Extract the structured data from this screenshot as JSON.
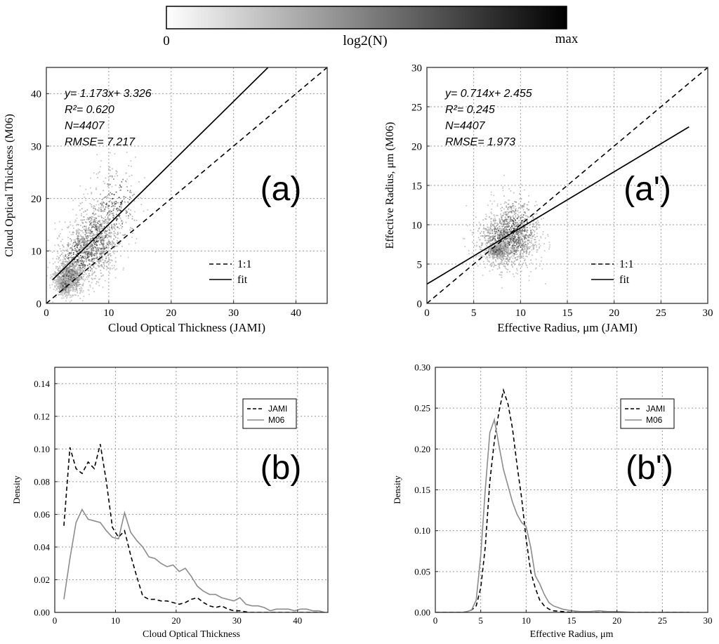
{
  "colorbar": {
    "min_label": "0",
    "center_label": "log2(N)",
    "max_label": "max",
    "colors": [
      "#ffffff",
      "#000000"
    ]
  },
  "chart_data": [
    {
      "id": "a",
      "type": "scatter",
      "panel_label": "(a)",
      "xlabel": "Cloud Optical Thickness (JAMI)",
      "ylabel": "Cloud Optical Thickness (M06)",
      "xlim": [
        0,
        45
      ],
      "ylim": [
        0,
        45
      ],
      "xticks": [
        0,
        10,
        20,
        30,
        40
      ],
      "yticks": [
        0,
        10,
        20,
        30,
        40
      ],
      "grid": true,
      "stats": [
        "y= 1.173x+ 3.326",
        "R²= 0.620",
        "N=4407",
        "RMSE= 7.217"
      ],
      "fit": {
        "slope": 1.173,
        "intercept": 3.326,
        "x_range": [
          1.0,
          35.5
        ]
      },
      "one_to_one": {
        "x_range": [
          0,
          45
        ]
      },
      "legend": {
        "position": "bottom-right",
        "entries": [
          {
            "label": "1:1",
            "style": "dashed"
          },
          {
            "label": "fit",
            "style": "solid"
          }
        ]
      },
      "density_clusters": [
        {
          "cx": 3.5,
          "cy": 5.0,
          "sx": 1.2,
          "sy": 1.6,
          "n": 700
        },
        {
          "cx": 8.0,
          "cy": 12.5,
          "sx": 1.8,
          "sy": 3.5,
          "n": 700
        },
        {
          "cx": 5.5,
          "cy": 9.0,
          "sx": 2.0,
          "sy": 3.0,
          "n": 500
        },
        {
          "cx": 11.0,
          "cy": 19.0,
          "sx": 2.0,
          "sy": 4.0,
          "n": 250
        },
        {
          "cx": 2.8,
          "cy": 3.5,
          "sx": 0.6,
          "sy": 0.8,
          "n": 300
        }
      ]
    },
    {
      "id": "a_prime",
      "type": "scatter",
      "panel_label": "(a')",
      "xlabel": "Effective Radius, μm (JAMI)",
      "ylabel": "Effective Radius, μm (M06)",
      "xlim": [
        0,
        30
      ],
      "ylim": [
        0,
        30
      ],
      "xticks": [
        0,
        5,
        10,
        15,
        20,
        25,
        30
      ],
      "yticks": [
        0,
        5,
        10,
        15,
        20,
        25,
        30
      ],
      "grid": true,
      "stats": [
        "y= 0.714x+ 2.455",
        "R²= 0.245",
        "N=4407",
        "RMSE= 1.973"
      ],
      "fit": {
        "slope": 0.714,
        "intercept": 2.455,
        "x_range": [
          0,
          28
        ]
      },
      "one_to_one": {
        "x_range": [
          0,
          30
        ]
      },
      "legend": {
        "position": "bottom-right",
        "entries": [
          {
            "label": "1:1",
            "style": "dashed"
          },
          {
            "label": "fit",
            "style": "solid"
          }
        ]
      },
      "density_clusters": [
        {
          "cx": 8.5,
          "cy": 8.0,
          "sx": 1.6,
          "sy": 1.8,
          "n": 1100
        },
        {
          "cx": 7.5,
          "cy": 6.8,
          "sx": 0.6,
          "sy": 0.5,
          "n": 400
        },
        {
          "cx": 9.5,
          "cy": 10.0,
          "sx": 1.3,
          "sy": 2.0,
          "n": 350
        }
      ]
    },
    {
      "id": "b",
      "type": "line",
      "panel_label": "(b)",
      "xlabel": "Cloud Optical Thickness",
      "ylabel": "Density",
      "xlim": [
        0,
        45
      ],
      "ylim": [
        0,
        0.15
      ],
      "xticks": [
        0,
        10,
        20,
        30,
        40
      ],
      "yticks": [
        0.0,
        0.02,
        0.04,
        0.06,
        0.08,
        0.1,
        0.12,
        0.14
      ],
      "ytick_labels": [
        "0.00",
        "0.02",
        "0.04",
        "0.06",
        "0.08",
        "0.10",
        "0.12",
        "0.14"
      ],
      "grid": true,
      "legend": {
        "position": "top-right"
      },
      "series": [
        {
          "name": "JAMI",
          "style": "dashed",
          "color": "#000000",
          "x": [
            1.5,
            2.5,
            3.5,
            4.5,
            5.5,
            6.5,
            7.5,
            8.5,
            9.5,
            10.5,
            11.5,
            12.5,
            13.5,
            14.5,
            15.5,
            16.5,
            17.5,
            18.5,
            19.5,
            20.5,
            21.5,
            22.5,
            23.5,
            24.5,
            25.5,
            26.5,
            27.5,
            28.5,
            29.5,
            30.5,
            32,
            35,
            40,
            45
          ],
          "values": [
            0.053,
            0.101,
            0.088,
            0.085,
            0.092,
            0.088,
            0.103,
            0.08,
            0.052,
            0.046,
            0.05,
            0.035,
            0.022,
            0.01,
            0.008,
            0.008,
            0.007,
            0.007,
            0.006,
            0.005,
            0.006,
            0.008,
            0.009,
            0.006,
            0.004,
            0.003,
            0.004,
            0.002,
            0.001,
            0.001,
            0.0,
            0.0,
            0.0,
            0.0
          ]
        },
        {
          "name": "M06",
          "style": "solid",
          "color": "#8c8c8c",
          "x": [
            1.5,
            2.5,
            3.5,
            4.5,
            5.5,
            6.5,
            7.5,
            8.5,
            9.5,
            10.5,
            11.5,
            12.5,
            13.5,
            14.5,
            15.5,
            16.5,
            17.5,
            18.5,
            19.5,
            20.5,
            21.5,
            22.5,
            23.5,
            24.5,
            25.5,
            26.5,
            27.5,
            28.5,
            29.5,
            30.5,
            31.5,
            32.5,
            33.5,
            34.5,
            35.5,
            36.5,
            37.5,
            38.5,
            39.5,
            40.5,
            41.5,
            42.5,
            43.5,
            44.5
          ],
          "values": [
            0.008,
            0.033,
            0.055,
            0.063,
            0.057,
            0.056,
            0.055,
            0.05,
            0.046,
            0.045,
            0.061,
            0.049,
            0.044,
            0.04,
            0.034,
            0.033,
            0.03,
            0.028,
            0.029,
            0.025,
            0.027,
            0.022,
            0.016,
            0.013,
            0.011,
            0.011,
            0.009,
            0.008,
            0.007,
            0.009,
            0.005,
            0.004,
            0.004,
            0.003,
            0.001,
            0.002,
            0.002,
            0.002,
            0.001,
            0.002,
            0.002,
            0.001,
            0.001,
            0.0
          ]
        }
      ]
    },
    {
      "id": "b_prime",
      "type": "line",
      "panel_label": "(b')",
      "xlabel": "Effective Radius, μm",
      "ylabel": "Density",
      "xlim": [
        0,
        30
      ],
      "ylim": [
        0,
        0.3
      ],
      "xticks": [
        0,
        5,
        10,
        15,
        20,
        25,
        30
      ],
      "yticks": [
        0.0,
        0.05,
        0.1,
        0.15,
        0.2,
        0.25,
        0.3
      ],
      "ytick_labels": [
        "0.00",
        "0.05",
        "0.10",
        "0.15",
        "0.20",
        "0.25",
        "0.30"
      ],
      "grid": true,
      "legend": {
        "position": "top-right"
      },
      "series": [
        {
          "name": "JAMI",
          "style": "dashed",
          "color": "#000000",
          "x": [
            0,
            1,
            2,
            3,
            3.5,
            4,
            4.5,
            5,
            5.5,
            6,
            6.5,
            7,
            7.5,
            8,
            8.5,
            9,
            9.5,
            10,
            10.5,
            11,
            11.5,
            12,
            12.5,
            13,
            14,
            15,
            16,
            17,
            18,
            20,
            22,
            24,
            26,
            28
          ],
          "values": [
            0,
            0,
            0,
            0,
            0.001,
            0.003,
            0.008,
            0.03,
            0.08,
            0.16,
            0.21,
            0.245,
            0.272,
            0.255,
            0.225,
            0.18,
            0.14,
            0.09,
            0.05,
            0.03,
            0.015,
            0.008,
            0.004,
            0.002,
            0.001,
            0,
            0,
            0,
            0,
            0,
            0,
            0,
            0,
            0
          ]
        },
        {
          "name": "M06",
          "style": "solid",
          "color": "#8c8c8c",
          "x": [
            0,
            1,
            2,
            3,
            3.5,
            4,
            4.5,
            5,
            5.5,
            6,
            6.5,
            7,
            7.5,
            8,
            8.5,
            9,
            9.5,
            10,
            10.5,
            11,
            11.5,
            12,
            12.5,
            13,
            14,
            15,
            16,
            17,
            18,
            19,
            20,
            22,
            24,
            26,
            28
          ],
          "values": [
            0,
            0,
            0,
            0,
            0.001,
            0.003,
            0.015,
            0.07,
            0.15,
            0.22,
            0.236,
            0.205,
            0.175,
            0.155,
            0.135,
            0.12,
            0.11,
            0.105,
            0.08,
            0.045,
            0.035,
            0.022,
            0.012,
            0.008,
            0.004,
            0.002,
            0.001,
            0.001,
            0.002,
            0.001,
            0.001,
            0,
            0,
            0,
            0
          ]
        }
      ]
    }
  ]
}
